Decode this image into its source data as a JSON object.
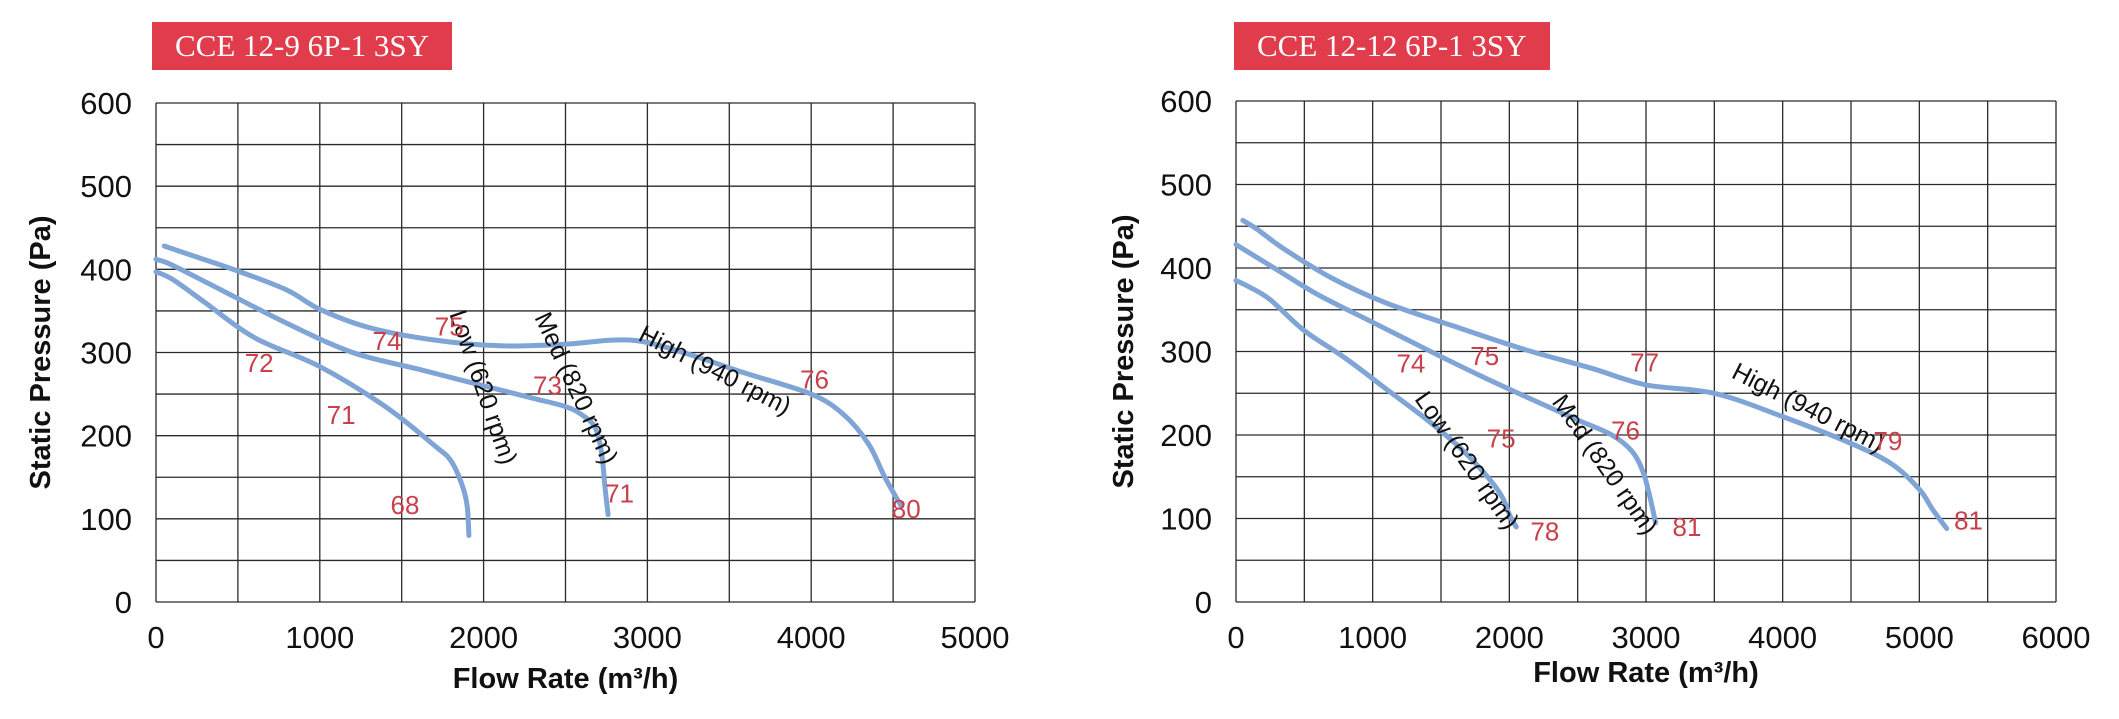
{
  "colors": {
    "badge_bg": "#e03c4c",
    "curve": "#7fa4d6",
    "sound_label": "#c9404b",
    "grid": "#2a2a2a",
    "text": "#111111"
  },
  "chart_data": [
    {
      "type": "line",
      "title": "CCE 12-9 6P-1 3SY",
      "xlabel": "Flow Rate (m³/h)",
      "ylabel": "Static Pressure (Pa)",
      "xlim": [
        0,
        5000
      ],
      "ylim": [
        0,
        600
      ],
      "x_ticks": [
        0,
        1000,
        2000,
        3000,
        4000,
        5000
      ],
      "y_ticks": [
        0,
        100,
        200,
        300,
        400,
        500,
        600
      ],
      "x_tick_labels": [
        "0",
        "1000",
        "2000",
        "3000",
        "4000",
        "5000"
      ],
      "y_tick_labels": [
        "0",
        "100",
        "200",
        "300",
        "400",
        "500",
        "600"
      ],
      "grid_x_step": 500,
      "grid_y_step": 50,
      "series": [
        {
          "name": "Low (620 rpm)",
          "x": [
            0,
            100,
            300,
            600,
            1000,
            1400,
            1700,
            1800,
            1870,
            1900,
            1910
          ],
          "y": [
            397,
            388,
            360,
            318,
            283,
            235,
            188,
            170,
            140,
            115,
            80
          ]
        },
        {
          "name": "Med (820 rpm)",
          "x": [
            0,
            100,
            400,
            800,
            1200,
            1600,
            2000,
            2300,
            2500,
            2600,
            2680,
            2720,
            2740,
            2760
          ],
          "y": [
            412,
            405,
            375,
            335,
            300,
            280,
            260,
            245,
            235,
            225,
            210,
            180,
            140,
            105
          ]
        },
        {
          "name": "High (940 rpm)",
          "x": [
            50,
            200,
            500,
            800,
            1000,
            1300,
            1700,
            2100,
            2500,
            2800,
            3000,
            3300,
            3600,
            4000,
            4200,
            4350,
            4450,
            4550
          ],
          "y": [
            428,
            418,
            398,
            375,
            352,
            330,
            315,
            308,
            310,
            315,
            312,
            295,
            275,
            250,
            225,
            190,
            150,
            115
          ]
        }
      ],
      "curve_labels": [
        {
          "text": "Low (620 rpm)",
          "x": 1950,
          "y": 255,
          "angle": 71
        },
        {
          "text": "Med (820 rpm)",
          "x": 2520,
          "y": 253,
          "angle": 65
        },
        {
          "text": "High (940 rpm)",
          "x": 3390,
          "y": 270,
          "angle": 27
        }
      ],
      "annotations": [
        {
          "text": "72",
          "x": 630,
          "y": 285
        },
        {
          "text": "71",
          "x": 1130,
          "y": 222
        },
        {
          "text": "68",
          "x": 1520,
          "y": 114
        },
        {
          "text": "74",
          "x": 1410,
          "y": 311
        },
        {
          "text": "75",
          "x": 1790,
          "y": 329
        },
        {
          "text": "73",
          "x": 2390,
          "y": 258
        },
        {
          "text": "71",
          "x": 2830,
          "y": 128
        },
        {
          "text": "76",
          "x": 4020,
          "y": 265
        },
        {
          "text": "80",
          "x": 4580,
          "y": 109
        }
      ]
    },
    {
      "type": "line",
      "title": "CCE 12-12 6P-1 3SY",
      "xlabel": "Flow Rate (m³/h)",
      "ylabel": "Static Pressure (Pa)",
      "xlim": [
        0,
        6000
      ],
      "ylim": [
        0,
        600
      ],
      "x_ticks": [
        0,
        1000,
        2000,
        3000,
        4000,
        5000,
        6000
      ],
      "y_ticks": [
        0,
        100,
        200,
        300,
        400,
        500,
        600
      ],
      "x_tick_labels": [
        "0",
        "1000",
        "2000",
        "3000",
        "4000",
        "5000",
        "6000"
      ],
      "y_tick_labels": [
        "0",
        "100",
        "200",
        "300",
        "400",
        "500",
        "600"
      ],
      "grid_x_step": 500,
      "grid_y_step": 50,
      "series": [
        {
          "name": "Low (620 rpm)",
          "x": [
            0,
            100,
            250,
            500,
            800,
            1100,
            1400,
            1650,
            1850,
            1950,
            2000,
            2050
          ],
          "y": [
            385,
            377,
            362,
            325,
            292,
            255,
            218,
            183,
            148,
            125,
            105,
            90
          ]
        },
        {
          "name": "Med (820 rpm)",
          "x": [
            0,
            100,
            300,
            600,
            1000,
            1400,
            1800,
            2200,
            2500,
            2750,
            2900,
            2980,
            3030,
            3070
          ],
          "y": [
            428,
            418,
            398,
            368,
            335,
            302,
            270,
            240,
            218,
            200,
            180,
            155,
            125,
            95
          ]
        },
        {
          "name": "High (940 rpm)",
          "x": [
            50,
            150,
            350,
            700,
            1100,
            1600,
            2100,
            2600,
            3000,
            3500,
            4000,
            4500,
            4800,
            5000,
            5100,
            5200
          ],
          "y": [
            457,
            447,
            423,
            388,
            358,
            330,
            303,
            280,
            260,
            250,
            222,
            190,
            165,
            135,
            110,
            88
          ]
        }
      ],
      "curve_labels": [
        {
          "text": "Low (620 rpm)",
          "x": 1640,
          "y": 164,
          "angle": 55
        },
        {
          "text": "Med (820 rpm)",
          "x": 2650,
          "y": 159,
          "angle": 55
        },
        {
          "text": "High (940 rpm)",
          "x": 4160,
          "y": 224,
          "angle": 27
        }
      ],
      "annotations": [
        {
          "text": "74",
          "x": 1280,
          "y": 283
        },
        {
          "text": "75",
          "x": 1820,
          "y": 292
        },
        {
          "text": "77",
          "x": 2990,
          "y": 284
        },
        {
          "text": "75",
          "x": 1940,
          "y": 193
        },
        {
          "text": "76",
          "x": 2850,
          "y": 203
        },
        {
          "text": "79",
          "x": 4770,
          "y": 190
        },
        {
          "text": "78",
          "x": 2260,
          "y": 82
        },
        {
          "text": "81",
          "x": 3300,
          "y": 87
        },
        {
          "text": "81",
          "x": 5360,
          "y": 95
        }
      ]
    }
  ]
}
